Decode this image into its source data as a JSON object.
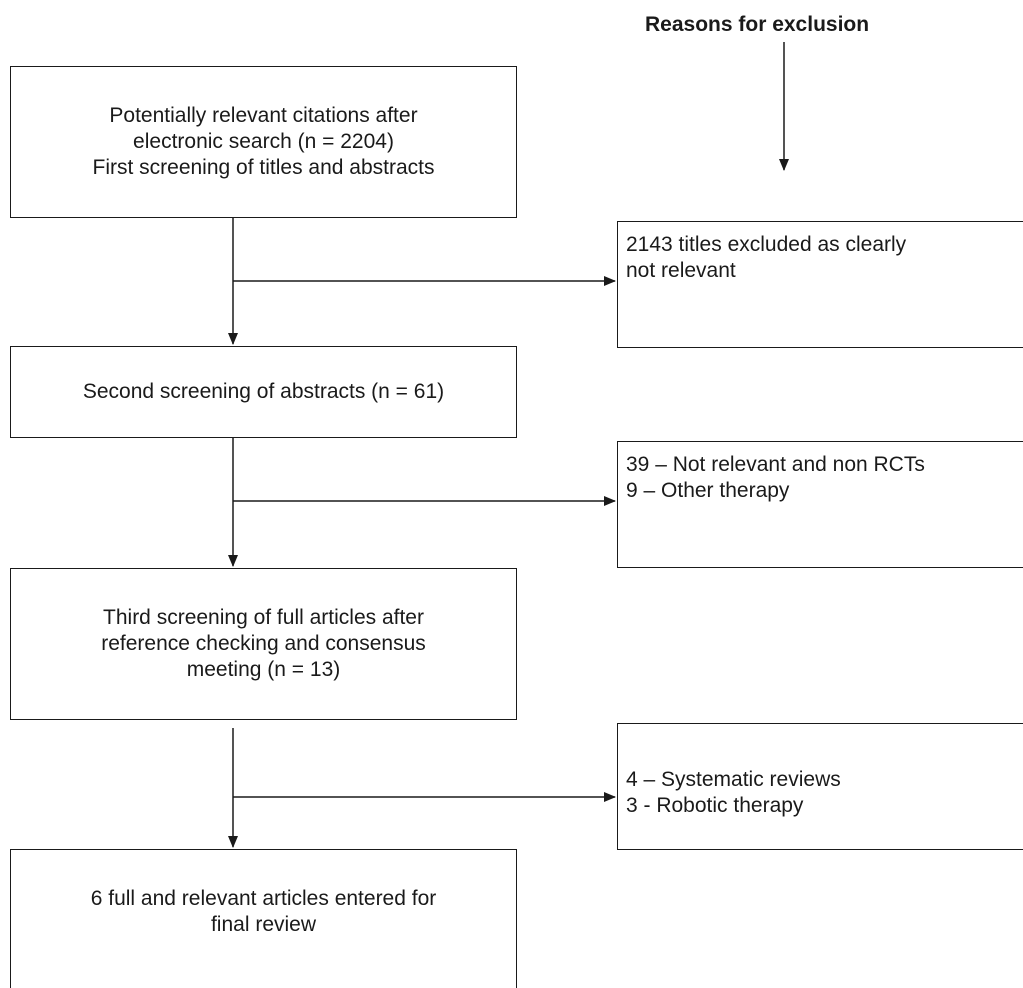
{
  "header": {
    "reasons_title": "Reasons for exclusion"
  },
  "steps": [
    {
      "lines": [
        "Potentially relevant citations after",
        "electronic search (n = 2204)",
        "First screening of titles and abstracts"
      ]
    },
    {
      "lines": [
        "Second screening of abstracts (n = 61)"
      ]
    },
    {
      "lines": [
        "Third screening of full articles after",
        "reference checking and consensus",
        "meeting (n = 13)"
      ]
    },
    {
      "lines": [
        "6 full and relevant articles entered for",
        "final review"
      ]
    }
  ],
  "exclusions": [
    {
      "lines": [
        "2143 titles excluded as clearly",
        "not relevant"
      ]
    },
    {
      "lines": [
        "39 – Not relevant and non RCTs",
        "9 – Other therapy"
      ]
    },
    {
      "lines": [
        "4 – Systematic reviews",
        "3 -  Robotic therapy"
      ]
    }
  ],
  "colors": {
    "stroke": "#1a1a1a",
    "background": "#ffffff"
  }
}
